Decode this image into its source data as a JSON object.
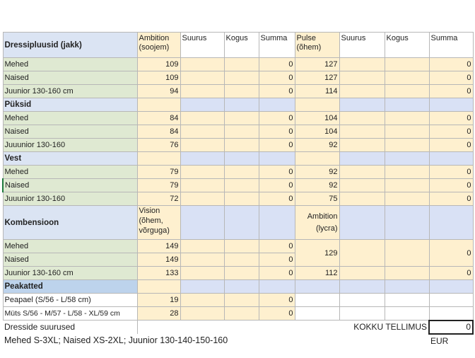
{
  "header": {
    "title": "Dressipluusid (jakk)",
    "col1": "Ambition (soojem)",
    "col2": "Suurus",
    "col3": "Kogus",
    "col4": "Summa",
    "col5": "Pulse (õhem)",
    "col6": "Suurus",
    "col7": "Kogus",
    "col8": "Summa"
  },
  "jakk": [
    {
      "label": "Mehed",
      "p1": "109",
      "s1": "0",
      "p2": "127",
      "s2": "0"
    },
    {
      "label": "Naised",
      "p1": "109",
      "s1": "0",
      "p2": "127",
      "s2": "0"
    },
    {
      "label": "Juunior 130-160 cm",
      "p1": "94",
      "s1": "0",
      "p2": "114",
      "s2": "0"
    }
  ],
  "puksid_title": "Püksid",
  "puksid": [
    {
      "label": "Mehed",
      "p1": "84",
      "s1": "0",
      "p2": "104",
      "s2": "0"
    },
    {
      "label": "Naised",
      "p1": "84",
      "s1": "0",
      "p2": "104",
      "s2": "0"
    },
    {
      "label": "Juuunior 130-160",
      "p1": "76",
      "s1": "0",
      "p2": "92",
      "s2": "0"
    }
  ],
  "vest_title": "Vest",
  "vest": [
    {
      "label": "Mehed",
      "p1": "79",
      "s1": "0",
      "p2": "92",
      "s2": "0"
    },
    {
      "label": "Naised",
      "p1": "79",
      "s1": "0",
      "p2": "92",
      "s2": "0"
    },
    {
      "label": "Juuunior 130-160",
      "p1": "72",
      "s1": "0",
      "p2": "75",
      "s2": "0"
    }
  ],
  "komb": {
    "title": "Kombensioon",
    "col1": "Vision (õhem, võrguga)",
    "col5": "Ambition (lycra)"
  },
  "komb_rows": [
    {
      "label": "Mehed",
      "p1": "149",
      "s1": "0"
    },
    {
      "label": "Naised",
      "p1": "149",
      "s1": "0"
    },
    {
      "label": "Juunior 130-160 cm",
      "p1": "133",
      "s1": "0",
      "p2": "112",
      "s2": "0"
    }
  ],
  "komb_merged": {
    "p2": "129",
    "s2": "0"
  },
  "peakatted_title": "Peakatted",
  "peakatted": [
    {
      "label": "Peapael (S/56 - L/58 cm)",
      "p1": "19",
      "s1": "0"
    },
    {
      "label": "Müts S/56 - M/57 - L/58 - XL/59 cm",
      "p1": "28",
      "s1": "0"
    }
  ],
  "footer": {
    "sizes_title": "Dresside suurused",
    "total_label": "KOKKU TELLIMUS",
    "total_value": "0",
    "sizes_text": "Mehed S-3XL; Naised XS-2XL; Juunior 130-140-150-160",
    "currency": "EUR"
  }
}
